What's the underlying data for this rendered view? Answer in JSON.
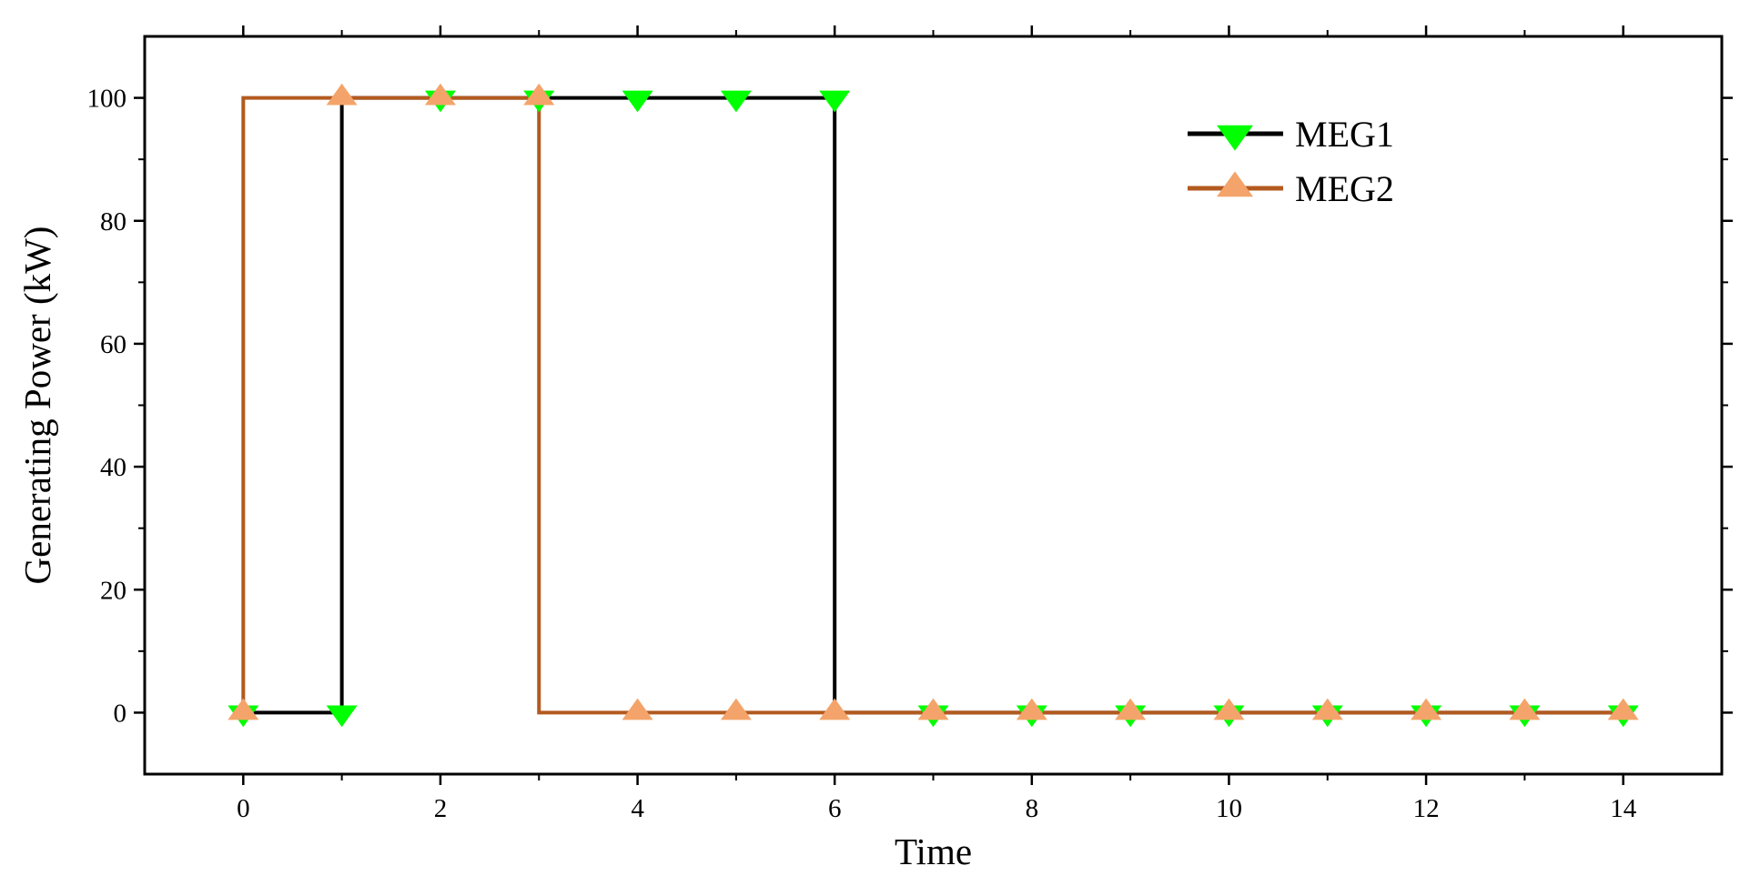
{
  "chart_data": {
    "type": "line",
    "title": "",
    "xlabel": "Time",
    "ylabel": "Generating Power (kW)",
    "xlim": [
      -1,
      15
    ],
    "ylim": [
      -10,
      110
    ],
    "xticks": [
      0,
      2,
      4,
      6,
      8,
      10,
      12,
      14
    ],
    "xticks_minor": [
      1,
      3,
      5,
      7,
      9,
      11,
      13
    ],
    "yticks": [
      0,
      20,
      40,
      60,
      80,
      100
    ],
    "yticks_minor": [
      10,
      30,
      50,
      70,
      90
    ],
    "x": [
      0,
      1,
      2,
      3,
      4,
      5,
      6,
      7,
      8,
      9,
      10,
      11,
      12,
      13,
      14
    ],
    "step": true,
    "grid": false,
    "legend": "top-right",
    "series": [
      {
        "name": "MEG1",
        "values": [
          0,
          0,
          100,
          100,
          100,
          100,
          100,
          0,
          0,
          0,
          0,
          0,
          0,
          0,
          0
        ],
        "line_color": "#000000",
        "marker": "triangle-down",
        "marker_color": "#00ff00"
      },
      {
        "name": "MEG2",
        "values": [
          0,
          100,
          100,
          100,
          0,
          0,
          0,
          0,
          0,
          0,
          0,
          0,
          0,
          0,
          0
        ],
        "line_color": "#b35a1f",
        "marker": "triangle-up",
        "marker_color": "#f4a46a"
      }
    ]
  }
}
